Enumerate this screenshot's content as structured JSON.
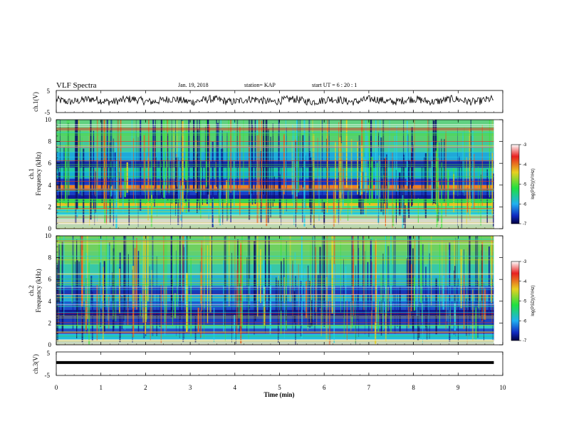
{
  "header": {
    "title": "VLF Spectra",
    "date": "Jan. 19, 2018",
    "station": "station= KAP",
    "start": "start  UT =   6 : 20 : 1"
  },
  "chart_data": [
    {
      "type": "line",
      "name": "ch1-waveform",
      "ylabel": "ch.1(V)",
      "ylim": [
        -5,
        5
      ],
      "yticks": [
        "5",
        "-5"
      ],
      "xlim": [
        0,
        10
      ],
      "x_end": 9.8,
      "level": 0.5,
      "amplitude": 2.2
    },
    {
      "type": "heatmap",
      "name": "ch1-spectrogram",
      "ylabel": "ch.1\nFrequency  (kHz)",
      "ylim": [
        0,
        10
      ],
      "yticks": [
        "0",
        "2",
        "4",
        "6",
        "8",
        "10"
      ],
      "xlim": [
        0,
        10
      ],
      "x_end": 9.8,
      "bands": [
        {
          "f0": 0,
          "f1": 0.4,
          "color": "#bcd8b0"
        },
        {
          "f0": 0.4,
          "f1": 0.9,
          "color": "#d8d8c8"
        },
        {
          "f0": 0.9,
          "f1": 1.3,
          "color": "#8fe0a0"
        },
        {
          "f0": 1.3,
          "f1": 1.8,
          "color": "#22c8d8"
        },
        {
          "f0": 1.8,
          "f1": 2.1,
          "color": "#44e080"
        },
        {
          "f0": 2.1,
          "f1": 2.35,
          "color": "#e8c020"
        },
        {
          "f0": 2.35,
          "f1": 2.7,
          "color": "#40d040"
        },
        {
          "f0": 2.7,
          "f1": 3.1,
          "color": "#101a9a"
        },
        {
          "f0": 3.1,
          "f1": 3.5,
          "color": "#1840c8"
        },
        {
          "f0": 3.5,
          "f1": 3.7,
          "color": "#e83020"
        },
        {
          "f0": 3.7,
          "f1": 4.0,
          "color": "#f08020"
        },
        {
          "f0": 4.0,
          "f1": 4.6,
          "color": "#1a3ac0"
        },
        {
          "f0": 4.6,
          "f1": 5.2,
          "color": "#18b0d0"
        },
        {
          "f0": 5.2,
          "f1": 5.6,
          "color": "#20c8a0"
        },
        {
          "f0": 5.6,
          "f1": 6.2,
          "color": "#1428a8"
        },
        {
          "f0": 6.2,
          "f1": 7.0,
          "color": "#20a8d8"
        },
        {
          "f0": 7.0,
          "f1": 8.0,
          "color": "#40c8a0"
        },
        {
          "f0": 8.0,
          "f1": 9.0,
          "color": "#58d070"
        },
        {
          "f0": 9.0,
          "f1": 10.0,
          "color": "#60d080"
        }
      ],
      "colorbar": {
        "label": "log(PSD)(V²/Hz)",
        "ticks": [
          "-3",
          "-4",
          "-5",
          "-6",
          "-7"
        ],
        "range": [
          -7,
          -3
        ]
      }
    },
    {
      "type": "heatmap",
      "name": "ch2-spectrogram",
      "ylabel": "ch.2\nFrequency  (kHz)",
      "ylim": [
        0,
        10
      ],
      "yticks": [
        "0",
        "2",
        "4",
        "6",
        "8",
        "10"
      ],
      "xlim": [
        0,
        10
      ],
      "x_end": 9.8,
      "bands": [
        {
          "f0": 0,
          "f1": 0.5,
          "color": "#c8d8c0"
        },
        {
          "f0": 0.5,
          "f1": 1.0,
          "color": "#22b8d8"
        },
        {
          "f0": 1.0,
          "f1": 1.5,
          "color": "#2050c8"
        },
        {
          "f0": 1.5,
          "f1": 1.8,
          "color": "#30c8c0"
        },
        {
          "f0": 1.8,
          "f1": 2.6,
          "color": "#1a40c0"
        },
        {
          "f0": 2.6,
          "f1": 3.2,
          "color": "#0c1490"
        },
        {
          "f0": 3.2,
          "f1": 4.0,
          "color": "#1e4cc8"
        },
        {
          "f0": 4.0,
          "f1": 4.6,
          "color": "#20a8d8"
        },
        {
          "f0": 4.6,
          "f1": 5.4,
          "color": "#1838b8"
        },
        {
          "f0": 5.4,
          "f1": 6.4,
          "color": "#28b0d0"
        },
        {
          "f0": 6.4,
          "f1": 7.4,
          "color": "#38c8a8"
        },
        {
          "f0": 7.4,
          "f1": 8.6,
          "color": "#60d070"
        },
        {
          "f0": 8.6,
          "f1": 10.0,
          "color": "#70d060"
        }
      ],
      "colorbar": {
        "label": "log(PSD)(V²/Hz)",
        "ticks": [
          "-3",
          "-4",
          "-5",
          "-6",
          "-7"
        ],
        "range": [
          -7,
          -3
        ]
      }
    },
    {
      "type": "line",
      "name": "ch3-waveform",
      "ylabel": "ch.3(V)",
      "ylim": [
        -5,
        5
      ],
      "yticks": [
        "5",
        "-5"
      ],
      "xlim": [
        0,
        10
      ],
      "x_end": 9.8,
      "level": 0.5,
      "amplitude": 0
    }
  ],
  "xaxis": {
    "label": "Time  (min)",
    "ticks": [
      "0",
      "1",
      "2",
      "3",
      "4",
      "5",
      "6",
      "7",
      "8",
      "9",
      "10"
    ],
    "range": [
      0,
      10
    ]
  }
}
